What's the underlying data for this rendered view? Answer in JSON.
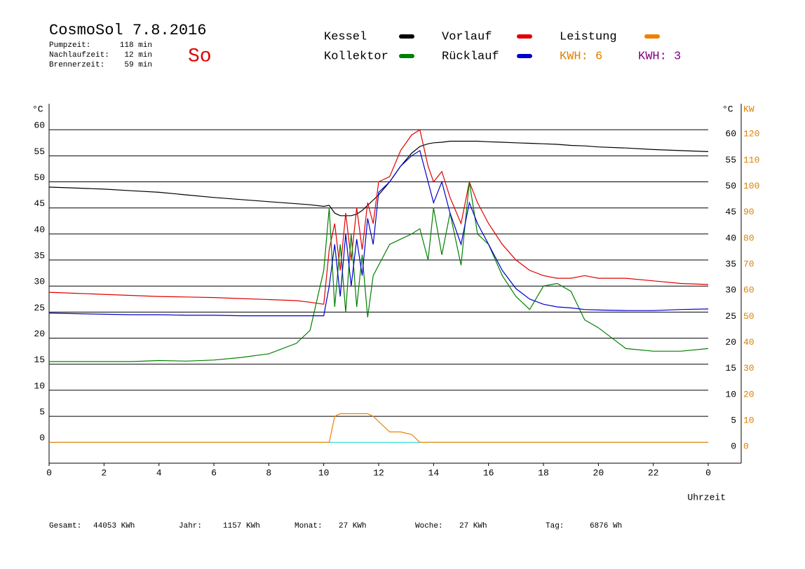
{
  "header": {
    "title": "CosmoSol 7.8.2016",
    "day": "So",
    "info": [
      {
        "label": "Pumpzeit:",
        "value": "118 min"
      },
      {
        "label": "Nachlaufzeit:",
        "value": "12 min"
      },
      {
        "label": "Brennerzeit:",
        "value": "59 min"
      }
    ],
    "kwh": [
      {
        "text": "KWH: 6",
        "color": "#e08000"
      },
      {
        "text": "KWH: 3",
        "color": "#800080"
      }
    ]
  },
  "footer": [
    {
      "label": "Gesamt:",
      "value": "44053 KWh"
    },
    {
      "label": "Jahr:",
      "value": "1157 KWh"
    },
    {
      "label": "Monat:",
      "value": "27 KWh"
    },
    {
      "label": "Woche:",
      "value": "27 KWh"
    },
    {
      "label": "Tag:",
      "value": "6876 Wh"
    }
  ],
  "chart_data": {
    "type": "line",
    "y_label": "°C",
    "y2_label_c": "°C",
    "y2_label": "KW",
    "x_label": "Uhrzeit",
    "x": [
      0,
      1,
      2,
      3,
      4,
      5,
      6,
      7,
      8,
      9,
      9.5,
      10,
      10.2,
      10.4,
      10.6,
      10.8,
      11,
      11.2,
      11.4,
      11.6,
      11.8,
      12,
      12.4,
      12.8,
      13.2,
      13.5,
      13.8,
      14,
      14.3,
      14.6,
      15,
      15.3,
      15.6,
      16,
      16.5,
      17,
      17.5,
      18,
      18.5,
      19,
      19.5,
      20,
      21,
      22,
      23,
      24
    ],
    "xlim": [
      0,
      25.2
    ],
    "xticks": [
      0,
      2,
      4,
      6,
      8,
      10,
      12,
      14,
      16,
      18,
      20,
      22,
      {
        "value": 24,
        "label": "0"
      }
    ],
    "ylim": [
      -4,
      65
    ],
    "yticks": [
      0,
      5,
      10,
      15,
      20,
      25,
      30,
      35,
      40,
      45,
      50,
      55,
      60
    ],
    "y2lim": [
      -8,
      130
    ],
    "y2ticks": [
      0,
      10,
      20,
      30,
      40,
      50,
      60,
      70,
      80,
      90,
      100,
      110,
      120
    ],
    "grid": true,
    "series": [
      {
        "name": "Kessel",
        "color": "#000000",
        "values": [
          49,
          48.8,
          48.6,
          48.3,
          48,
          47.5,
          47,
          46.6,
          46.2,
          45.8,
          45.6,
          45.3,
          45.5,
          44,
          43.5,
          43.5,
          43.5,
          43.8,
          44.5,
          45.5,
          46.5,
          47.5,
          50,
          53,
          55.5,
          56.8,
          57.3,
          57.5,
          57.6,
          57.8,
          57.8,
          57.8,
          57.8,
          57.7,
          57.6,
          57.5,
          57.4,
          57.3,
          57.2,
          57,
          56.9,
          56.7,
          56.5,
          56.2,
          56,
          55.8
        ]
      },
      {
        "name": "Vorlauf",
        "color": "#e00000",
        "values": [
          28.8,
          28.6,
          28.4,
          28.2,
          28,
          27.9,
          27.8,
          27.6,
          27.4,
          27.2,
          26.9,
          26.5,
          37,
          42,
          33,
          44,
          35,
          45,
          37,
          46,
          42,
          50,
          51,
          56,
          59,
          60,
          53,
          50,
          52,
          47,
          42,
          50,
          46,
          42,
          38,
          35,
          33,
          32,
          31.5,
          31.5,
          32,
          31.5,
          31.5,
          31,
          30.5,
          30.3
        ]
      },
      {
        "name": "Leistung",
        "color": "#f08000",
        "axis": "y2",
        "values": [
          0,
          0,
          0,
          0,
          0,
          0,
          0,
          0,
          0,
          0,
          0,
          0,
          0,
          10,
          11,
          11,
          11,
          11,
          11,
          11,
          10,
          8,
          4,
          4,
          3,
          0,
          0,
          0,
          0,
          0,
          0,
          0,
          0,
          0,
          0,
          0,
          0,
          0,
          0,
          0,
          0,
          0,
          0,
          0,
          0,
          0
        ]
      },
      {
        "name": "Kollektor",
        "color": "#008000",
        "values": [
          15.5,
          15.5,
          15.5,
          15.5,
          15.7,
          15.6,
          15.8,
          16.3,
          17,
          19,
          21.5,
          33,
          45,
          26,
          38,
          25,
          40,
          26,
          36,
          24,
          32,
          34,
          38,
          39,
          40,
          41,
          35,
          45,
          36,
          44,
          34,
          50,
          40,
          38,
          32,
          28,
          25.5,
          30,
          30.5,
          29,
          23.5,
          22,
          18,
          17.5,
          17.5,
          18
        ]
      },
      {
        "name": "Rücklauf",
        "color": "#0000cc",
        "values": [
          24.8,
          24.7,
          24.6,
          24.5,
          24.5,
          24.4,
          24.4,
          24.3,
          24.3,
          24.3,
          24.3,
          24.3,
          30,
          38,
          28,
          40,
          30,
          39,
          32,
          43,
          38,
          48,
          50,
          53,
          55,
          56,
          50,
          46,
          50,
          44,
          38,
          46,
          42,
          38,
          33,
          29.5,
          27.5,
          26.5,
          26,
          25.8,
          25.5,
          25.4,
          25.3,
          25.3,
          25.5,
          25.6
        ]
      }
    ]
  }
}
